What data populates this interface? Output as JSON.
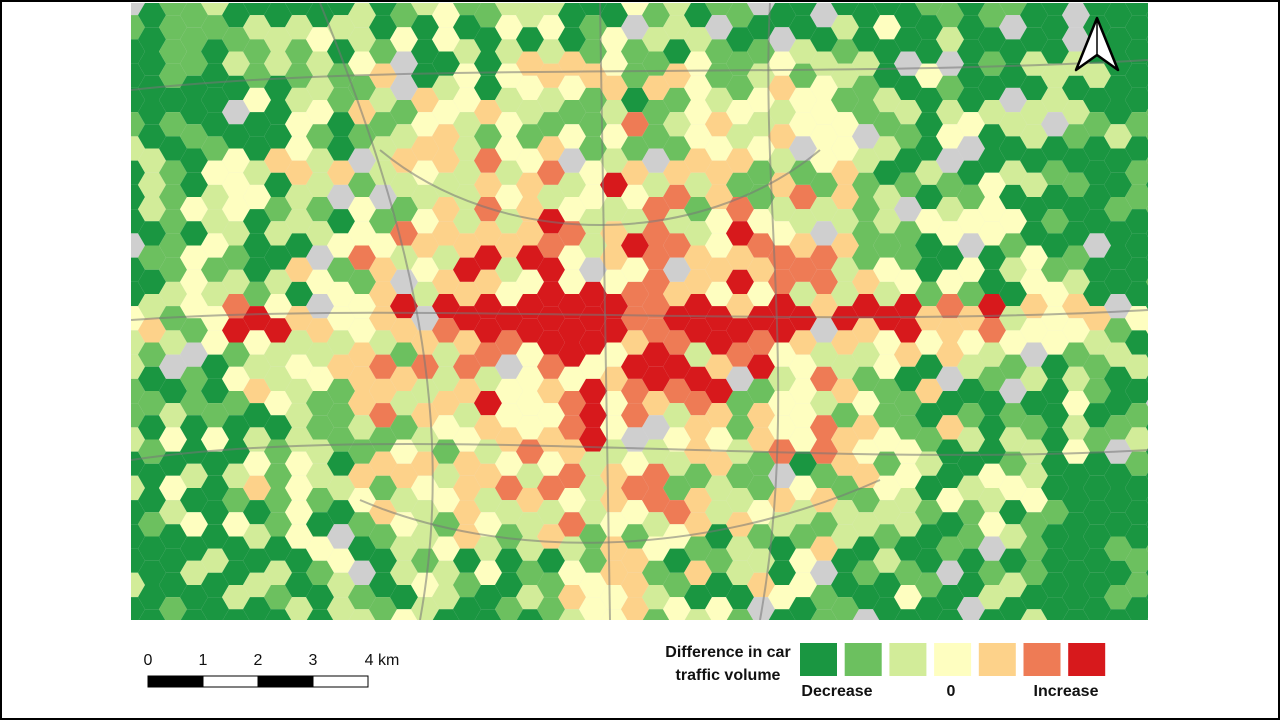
{
  "scale_bar": {
    "labels": [
      "0",
      "1",
      "2",
      "3",
      "4 km"
    ]
  },
  "legend": {
    "title": [
      "Difference in car",
      "traffic volume"
    ],
    "colors": [
      "#1a9641",
      "#6cc05f",
      "#d2ec99",
      "#fefec0",
      "#fdd28a",
      "#ee7b55",
      "#d7191c"
    ],
    "labels": {
      "low": "Decrease",
      "mid": "0",
      "high": "Increase"
    }
  }
}
